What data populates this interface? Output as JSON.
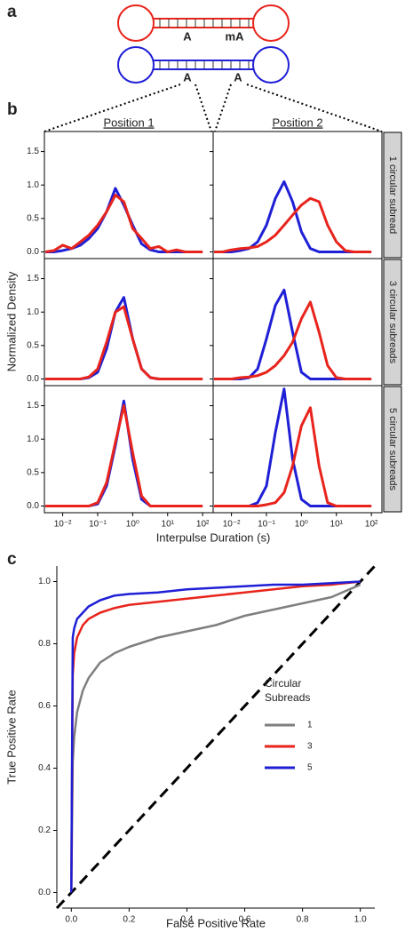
{
  "panel_labels": [
    "a",
    "b",
    "c"
  ],
  "diagram": {
    "labels": [
      "A",
      "mA",
      "A",
      "A"
    ]
  },
  "panel_b": {
    "column_titles": [
      "Position 1",
      "Position 2"
    ],
    "row_titles": [
      "1 circular subread",
      "3 circular subreads",
      "5 circular subreads"
    ],
    "xlabel": "Interpulse Duration (s)",
    "ylabel": "Normalized Density"
  },
  "chart_data": [
    {
      "type": "line",
      "xscale": "log",
      "x": [
        0.0032,
        0.0056,
        0.01,
        0.018,
        0.032,
        0.056,
        0.1,
        0.18,
        0.32,
        0.56,
        1,
        1.8,
        3.2,
        5.6,
        10,
        18,
        32,
        56,
        100
      ],
      "xlim": [
        0.003,
        200
      ],
      "ylim": [
        -0.1,
        1.8
      ],
      "yticks": [
        {
          "value": 0,
          "label": "0.0"
        },
        0.5,
        {
          "value": 1,
          "label": "1.0"
        },
        1.5
      ],
      "series": [
        {
          "color": "#1f1fd6",
          "values": [
            0,
            0,
            0.02,
            0.05,
            0.1,
            0.2,
            0.35,
            0.6,
            0.95,
            0.7,
            0.4,
            0.12,
            0.03,
            0,
            0,
            0,
            0,
            0,
            0
          ]
        },
        {
          "color": "#e8241c",
          "values": [
            0,
            0.02,
            0.1,
            0.05,
            0.15,
            0.25,
            0.4,
            0.6,
            0.85,
            0.75,
            0.35,
            0.2,
            0.05,
            0.08,
            0,
            0.03,
            0,
            0,
            0
          ]
        }
      ]
    },
    {
      "type": "line",
      "xscale": "log",
      "x": [
        0.0032,
        0.0056,
        0.01,
        0.018,
        0.032,
        0.056,
        0.1,
        0.18,
        0.32,
        0.56,
        1,
        1.8,
        3.2,
        5.6,
        10,
        18,
        32,
        56,
        100
      ],
      "xlim": [
        0.003,
        200
      ],
      "ylim": [
        -0.1,
        1.8
      ],
      "yticks": [
        0,
        0.5,
        1,
        1.5
      ],
      "series": [
        {
          "color": "#1f1fd6",
          "values": [
            0,
            0,
            0,
            0.02,
            0.05,
            0.15,
            0.4,
            0.8,
            1.05,
            0.75,
            0.3,
            0.05,
            0,
            0,
            0,
            0,
            0,
            0,
            0
          ]
        },
        {
          "color": "#e8241c",
          "values": [
            0,
            0,
            0.03,
            0.05,
            0.06,
            0.08,
            0.15,
            0.25,
            0.4,
            0.55,
            0.7,
            0.8,
            0.75,
            0.4,
            0.15,
            0.02,
            0,
            0,
            0
          ]
        }
      ]
    },
    {
      "type": "line",
      "xscale": "log",
      "x": [
        0.0032,
        0.0056,
        0.01,
        0.018,
        0.032,
        0.056,
        0.1,
        0.18,
        0.32,
        0.56,
        1,
        1.8,
        3.2,
        5.6,
        10,
        18,
        32,
        56,
        100
      ],
      "xlim": [
        0.003,
        200
      ],
      "ylim": [
        -0.1,
        1.8
      ],
      "yticks": [
        {
          "value": 0,
          "label": "0.0"
        },
        0.5,
        {
          "value": 1,
          "label": "1.0"
        },
        1.5
      ],
      "series": [
        {
          "color": "#1f1fd6",
          "values": [
            0,
            0,
            0,
            0,
            0,
            0.02,
            0.1,
            0.45,
            1.0,
            1.22,
            0.6,
            0.15,
            0.02,
            0,
            0,
            0,
            0,
            0,
            0
          ]
        },
        {
          "color": "#e8241c",
          "values": [
            0,
            0,
            0,
            0,
            0,
            0.03,
            0.15,
            0.55,
            1.0,
            1.08,
            0.6,
            0.15,
            0.02,
            0,
            0,
            0,
            0,
            0,
            0
          ]
        }
      ]
    },
    {
      "type": "line",
      "xscale": "log",
      "x": [
        0.0032,
        0.0056,
        0.01,
        0.018,
        0.032,
        0.056,
        0.1,
        0.18,
        0.32,
        0.56,
        1,
        1.8,
        3.2,
        5.6,
        10,
        18,
        32,
        56,
        100
      ],
      "xlim": [
        0.003,
        200
      ],
      "ylim": [
        -0.1,
        1.8
      ],
      "yticks": [
        0,
        0.5,
        1,
        1.5
      ],
      "series": [
        {
          "color": "#1f1fd6",
          "values": [
            0,
            0,
            0,
            0,
            0.02,
            0.15,
            0.6,
            1.1,
            1.33,
            0.7,
            0.1,
            0,
            0,
            0,
            0,
            0,
            0,
            0,
            0
          ]
        },
        {
          "color": "#e8241c",
          "values": [
            0,
            0,
            0,
            0.02,
            0.03,
            0.05,
            0.1,
            0.2,
            0.35,
            0.55,
            0.9,
            1.15,
            0.7,
            0.2,
            0.02,
            0,
            0,
            0,
            0
          ]
        }
      ]
    },
    {
      "type": "line",
      "xscale": "log",
      "x": [
        0.0032,
        0.0056,
        0.01,
        0.018,
        0.032,
        0.056,
        0.1,
        0.18,
        0.32,
        0.56,
        1,
        1.8,
        3.2,
        5.6,
        10,
        18,
        32,
        56,
        100
      ],
      "xlim": [
        0.003,
        200
      ],
      "ylim": [
        -0.1,
        1.8
      ],
      "yticks": [
        {
          "value": 0,
          "label": "0.0"
        },
        0.5,
        {
          "value": 1,
          "label": "1.0"
        },
        1.5
      ],
      "xticks": [
        {
          "value": 0.01,
          "label": "10⁻²"
        },
        {
          "value": 0.1,
          "label": "10⁻¹"
        },
        {
          "value": 1,
          "label": "10⁰"
        },
        {
          "value": 10,
          "label": "10¹"
        },
        {
          "value": 100,
          "label": "10²"
        }
      ],
      "series": [
        {
          "color": "#1f1fd6",
          "values": [
            0,
            0,
            0,
            0,
            0,
            0,
            0.03,
            0.3,
            0.9,
            1.57,
            0.7,
            0.1,
            0,
            0,
            0,
            0,
            0,
            0,
            0
          ]
        },
        {
          "color": "#e8241c",
          "values": [
            0,
            0,
            0,
            0,
            0,
            0,
            0.05,
            0.35,
            0.95,
            1.5,
            0.8,
            0.15,
            0,
            0,
            0,
            0,
            0,
            0,
            0
          ]
        }
      ]
    },
    {
      "type": "line",
      "xscale": "log",
      "x": [
        0.0032,
        0.0056,
        0.01,
        0.018,
        0.032,
        0.056,
        0.1,
        0.18,
        0.32,
        0.56,
        1,
        1.8,
        3.2,
        5.6,
        10,
        18,
        32,
        56,
        100
      ],
      "xlim": [
        0.003,
        200
      ],
      "ylim": [
        -0.1,
        1.8
      ],
      "yticks": [
        0,
        0.5,
        1,
        1.5
      ],
      "xticks": [
        {
          "value": 0.01,
          "label": "10⁻²"
        },
        {
          "value": 0.1,
          "label": "10⁻¹"
        },
        {
          "value": 1,
          "label": "10⁰"
        },
        {
          "value": 10,
          "label": "10¹"
        },
        {
          "value": 100,
          "label": "10²"
        }
      ],
      "series": [
        {
          "color": "#1f1fd6",
          "values": [
            0,
            0,
            0,
            0,
            0,
            0.05,
            0.3,
            1.1,
            1.75,
            0.7,
            0.1,
            0,
            0,
            0,
            0,
            0,
            0,
            0,
            0
          ]
        },
        {
          "color": "#e8241c",
          "values": [
            0,
            0,
            0,
            0,
            0,
            0,
            0.02,
            0.05,
            0.2,
            0.6,
            1.2,
            1.47,
            0.6,
            0.05,
            0,
            0,
            0,
            0,
            0
          ]
        }
      ]
    },
    {
      "type": "line",
      "x": [
        0,
        0.005,
        0.01,
        0.02,
        0.04,
        0.06,
        0.1,
        0.15,
        0.2,
        0.3,
        0.4,
        0.5,
        0.6,
        0.7,
        0.8,
        0.9,
        1.0
      ],
      "xlim": [
        -0.05,
        1.05
      ],
      "ylim": [
        -0.05,
        1.05
      ],
      "xticks": [
        {
          "value": 0,
          "label": "0.0"
        },
        0.2,
        0.4,
        0.6,
        0.8,
        {
          "value": 1,
          "label": "1.0"
        }
      ],
      "yticks": [
        {
          "value": 0,
          "label": "0.0"
        },
        0.2,
        0.4,
        0.6,
        0.8,
        {
          "value": 1,
          "label": "1.0"
        }
      ],
      "xlabel": "False Positive Rate",
      "ylabel": "True Positive Rate",
      "legend_title": [
        "Circular",
        "Subreads"
      ],
      "legend": "bottom-right",
      "series": [
        {
          "name": "1",
          "color": "#7f7f7f",
          "values": [
            0,
            0.42,
            0.5,
            0.58,
            0.65,
            0.69,
            0.74,
            0.77,
            0.79,
            0.82,
            0.84,
            0.86,
            0.89,
            0.91,
            0.93,
            0.95,
            0.99
          ]
        },
        {
          "name": "3",
          "color": "#e8241c",
          "values": [
            0,
            0.7,
            0.77,
            0.82,
            0.86,
            0.88,
            0.9,
            0.915,
            0.925,
            0.935,
            0.945,
            0.955,
            0.965,
            0.975,
            0.985,
            0.99,
            1.0
          ]
        },
        {
          "name": "5",
          "color": "#1f1fd6",
          "values": [
            0,
            0.82,
            0.85,
            0.88,
            0.9,
            0.92,
            0.94,
            0.955,
            0.96,
            0.965,
            0.975,
            0.98,
            0.985,
            0.99,
            0.99,
            0.995,
            1.0
          ]
        }
      ]
    }
  ]
}
